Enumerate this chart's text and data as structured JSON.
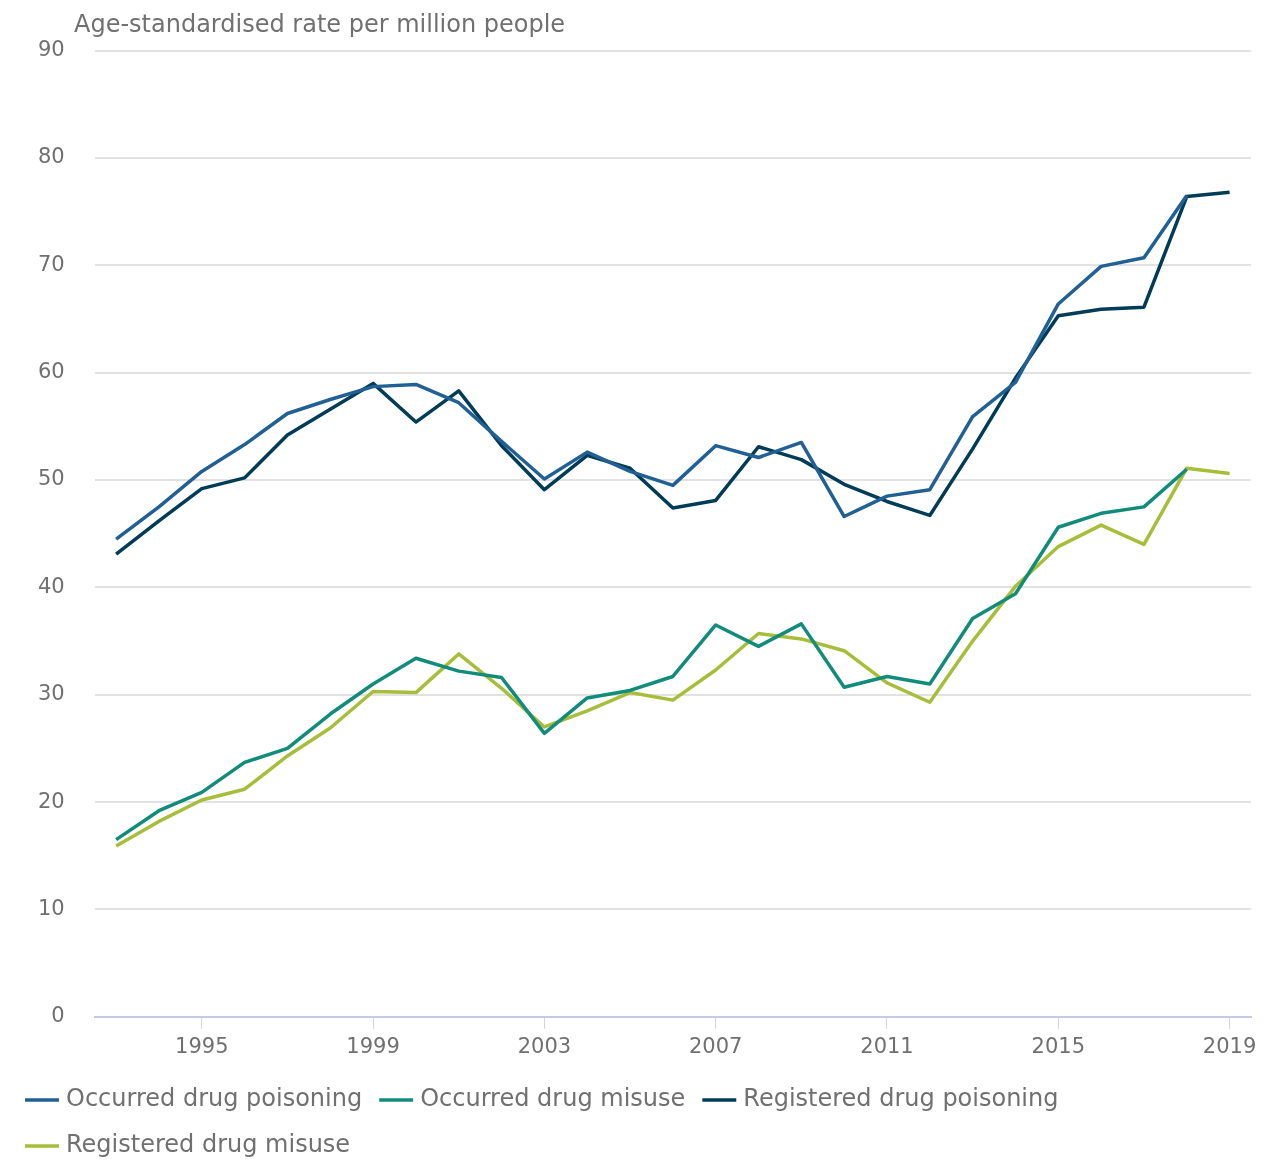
{
  "chart_data": {
    "type": "line",
    "ylabel": "Age-standardised rate per million people",
    "xlim": [
      1992.5,
      2019.5
    ],
    "xticks": [
      1995,
      1999,
      2003,
      2007,
      2011,
      2015,
      2019
    ],
    "ylim": [
      0,
      90
    ],
    "yticks": [
      0,
      10,
      20,
      30,
      40,
      50,
      60,
      70,
      80,
      90
    ],
    "grid": "y",
    "legend": "bottom",
    "marker": "none",
    "line_style": "solid",
    "x": [
      1993,
      1994,
      1995,
      1996,
      1997,
      1998,
      1999,
      2000,
      2001,
      2002,
      2003,
      2004,
      2005,
      2006,
      2007,
      2008,
      2009,
      2010,
      2011,
      2012,
      2013,
      2014,
      2015,
      2016,
      2017,
      2018,
      2019
    ],
    "series": [
      {
        "name": "Occurred drug poisoning",
        "color": "#206095",
        "values": [
          44.5,
          47.5,
          50.8,
          53.3,
          56.2,
          57.5,
          58.7,
          58.9,
          57.2,
          53.6,
          50.1,
          52.6,
          50.8,
          49.5,
          53.2,
          52.1,
          53.5,
          46.6,
          48.5,
          49.1,
          55.9,
          59.1,
          66.4,
          69.9,
          70.7,
          76.5,
          null
        ]
      },
      {
        "name": "Occurred drug misuse",
        "color": "#118c7b",
        "values": [
          16.5,
          19.2,
          20.9,
          23.7,
          25.0,
          28.2,
          31.0,
          33.4,
          32.2,
          31.6,
          26.4,
          29.7,
          30.4,
          31.7,
          36.5,
          34.5,
          36.6,
          30.7,
          31.7,
          31.0,
          37.1,
          39.4,
          45.6,
          46.9,
          47.5,
          51.0,
          null
        ]
      },
      {
        "name": "Registered drug poisoning",
        "color": "#003c57",
        "values": [
          43.1,
          46.2,
          49.2,
          50.2,
          54.2,
          56.6,
          59.0,
          55.4,
          58.3,
          53.2,
          49.1,
          52.3,
          51.1,
          47.4,
          48.1,
          53.1,
          51.9,
          49.6,
          48.0,
          46.7,
          52.9,
          59.5,
          65.3,
          65.9,
          66.1,
          76.4,
          76.8
        ]
      },
      {
        "name": "Registered drug misuse",
        "color": "#a8bd3a",
        "values": [
          15.9,
          18.2,
          20.2,
          21.2,
          24.3,
          26.9,
          30.3,
          30.2,
          33.8,
          30.6,
          27.0,
          28.5,
          30.2,
          29.5,
          32.3,
          35.7,
          35.2,
          34.1,
          31.1,
          29.3,
          35.0,
          40.1,
          43.8,
          45.8,
          44.0,
          51.1,
          50.6
        ]
      }
    ]
  }
}
